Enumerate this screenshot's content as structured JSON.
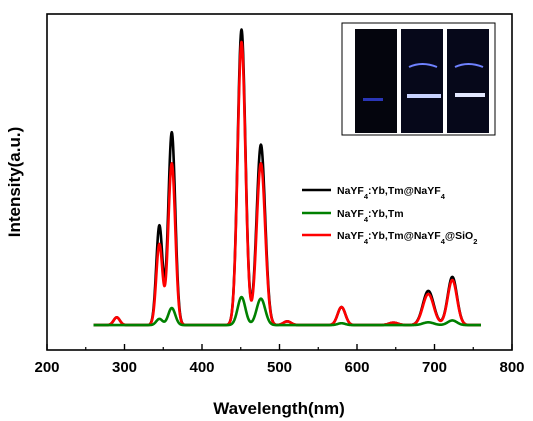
{
  "chart_data": {
    "type": "line",
    "xlabel": "Wavelength(nm)",
    "ylabel": "Intensity(a.u.)",
    "xlim": [
      200,
      800
    ],
    "xticks": [
      200,
      300,
      400,
      500,
      600,
      700,
      800
    ],
    "ylim": [
      -0.08,
      1.0
    ],
    "y_ticks_shown": false,
    "grid": false,
    "legend_position": "middle-right",
    "inset": "three photographs of vials glowing blue in a dark background, top-right",
    "series": [
      {
        "name": "NaYF4:Yb,Tm@NaYF4",
        "color": "#000000",
        "peaks": [
          {
            "x": 290,
            "y": 0.025,
            "w": 4
          },
          {
            "x": 345,
            "y": 0.32,
            "w": 4
          },
          {
            "x": 361,
            "y": 0.62,
            "w": 4.5
          },
          {
            "x": 451,
            "y": 0.95,
            "w": 5
          },
          {
            "x": 476,
            "y": 0.58,
            "w": 5.5
          },
          {
            "x": 510,
            "y": 0.012,
            "w": 5
          },
          {
            "x": 580,
            "y": 0.058,
            "w": 5
          },
          {
            "x": 647,
            "y": 0.008,
            "w": 6
          },
          {
            "x": 692,
            "y": 0.11,
            "w": 7
          },
          {
            "x": 723,
            "y": 0.155,
            "w": 6
          }
        ]
      },
      {
        "name": "NaYF4:Yb,Tm",
        "color": "#008000",
        "peaks": [
          {
            "x": 345,
            "y": 0.02,
            "w": 4
          },
          {
            "x": 361,
            "y": 0.055,
            "w": 4.5
          },
          {
            "x": 451,
            "y": 0.09,
            "w": 5
          },
          {
            "x": 476,
            "y": 0.085,
            "w": 5.5
          },
          {
            "x": 580,
            "y": 0.006,
            "w": 5
          },
          {
            "x": 692,
            "y": 0.009,
            "w": 7
          },
          {
            "x": 723,
            "y": 0.015,
            "w": 6
          }
        ]
      },
      {
        "name": "NaYF4:Yb,Tm@NaYF4@SiO2",
        "color": "#ff0000",
        "peaks": [
          {
            "x": 290,
            "y": 0.025,
            "w": 4
          },
          {
            "x": 345,
            "y": 0.26,
            "w": 4
          },
          {
            "x": 361,
            "y": 0.52,
            "w": 4.5
          },
          {
            "x": 451,
            "y": 0.91,
            "w": 5
          },
          {
            "x": 476,
            "y": 0.52,
            "w": 5.5
          },
          {
            "x": 510,
            "y": 0.012,
            "w": 5
          },
          {
            "x": 580,
            "y": 0.058,
            "w": 5
          },
          {
            "x": 647,
            "y": 0.008,
            "w": 6
          },
          {
            "x": 692,
            "y": 0.1,
            "w": 7
          },
          {
            "x": 723,
            "y": 0.145,
            "w": 6
          }
        ]
      }
    ]
  },
  "legend": [
    {
      "label_main": "NaYF",
      "sub1": "4",
      "mid": ":Yb,Tm@NaYF",
      "sub2": "4",
      "tail": "",
      "sub3": ""
    },
    {
      "label_main": "NaYF",
      "sub1": "4",
      "mid": ":Yb,Tm",
      "sub2": "",
      "tail": "",
      "sub3": ""
    },
    {
      "label_main": "NaYF",
      "sub1": "4",
      "mid": ":Yb,Tm@NaYF",
      "sub2": "4",
      "tail": "@SiO",
      "sub3": "2"
    }
  ]
}
